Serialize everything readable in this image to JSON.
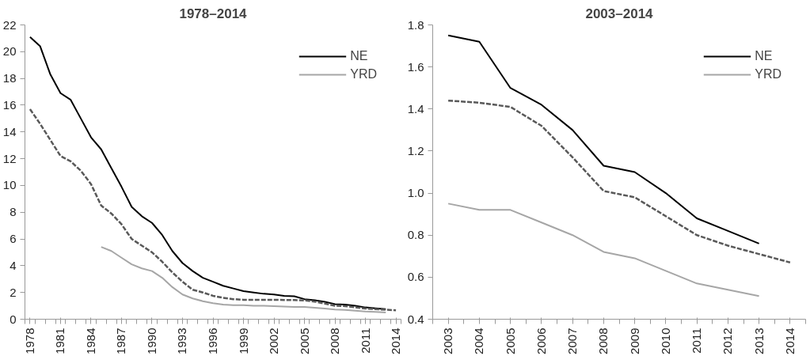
{
  "chart_data": [
    {
      "type": "line",
      "title": "1978–2014",
      "categories": [
        "1978",
        null,
        null,
        "1981",
        null,
        null,
        "1984",
        null,
        null,
        "1987",
        null,
        null,
        "1990",
        null,
        null,
        "1993",
        null,
        null,
        "1996",
        null,
        null,
        "1999",
        null,
        null,
        "2002",
        null,
        null,
        "2005",
        null,
        null,
        "2008",
        null,
        null,
        "2011",
        null,
        null,
        "2014"
      ],
      "series": [
        {
          "name": "NE",
          "color": "#000000",
          "line_style": "solid",
          "values": [
            21.1,
            20.4,
            18.3,
            16.9,
            16.4,
            15.0,
            13.6,
            12.7,
            11.3,
            9.9,
            8.4,
            7.7,
            7.2,
            6.3,
            5.1,
            4.2,
            3.6,
            3.1,
            2.8,
            2.5,
            2.3,
            2.1,
            2.0,
            1.9,
            1.85,
            1.75,
            1.72,
            1.5,
            1.42,
            1.3,
            1.13,
            1.1,
            1.0,
            0.88,
            0.82,
            0.76,
            null
          ]
        },
        {
          "name": "YRD",
          "color": "#a6a6a6",
          "line_style": "solid",
          "values": [
            null,
            null,
            null,
            null,
            null,
            null,
            null,
            5.4,
            5.1,
            4.6,
            4.1,
            3.8,
            3.6,
            3.1,
            2.4,
            1.85,
            1.55,
            1.35,
            1.2,
            1.1,
            1.05,
            1.05,
            1.0,
            1.0,
            0.97,
            0.95,
            0.92,
            0.92,
            0.86,
            0.8,
            0.72,
            0.69,
            0.63,
            0.57,
            0.54,
            0.51,
            null
          ]
        },
        {
          "color": "#595959",
          "line_style": "dashed",
          "values": [
            15.7,
            14.6,
            13.4,
            12.2,
            11.8,
            11.1,
            10.1,
            8.5,
            7.9,
            7.1,
            6.0,
            5.5,
            5.0,
            4.3,
            3.5,
            2.8,
            2.2,
            2.0,
            1.75,
            1.6,
            1.5,
            1.45,
            1.45,
            1.45,
            1.45,
            1.44,
            1.43,
            1.41,
            1.32,
            1.17,
            1.01,
            0.98,
            0.89,
            0.8,
            0.75,
            0.71,
            0.67
          ]
        }
      ],
      "ylim": [
        0,
        22
      ],
      "yticks": [
        0,
        2,
        4,
        6,
        8,
        10,
        12,
        14,
        16,
        18,
        20,
        22
      ],
      "grid": false,
      "legend": "top right"
    },
    {
      "type": "line",
      "title": "2003–2014",
      "categories": [
        "2003",
        "2004",
        "2005",
        "2006",
        "2007",
        "2008",
        "2009",
        "2010",
        "2011",
        "2012",
        "2013",
        "2014"
      ],
      "series": [
        {
          "name": "NE",
          "color": "#000000",
          "line_style": "solid",
          "values": [
            1.75,
            1.72,
            1.5,
            1.42,
            1.3,
            1.13,
            1.1,
            1.0,
            0.88,
            0.82,
            0.76,
            null
          ]
        },
        {
          "name": "YRD",
          "color": "#a6a6a6",
          "line_style": "solid",
          "values": [
            0.95,
            0.92,
            0.92,
            0.86,
            0.8,
            0.72,
            0.69,
            0.63,
            0.57,
            0.54,
            0.51,
            null
          ]
        },
        {
          "color": "#595959",
          "line_style": "dashed",
          "values": [
            1.44,
            1.43,
            1.41,
            1.32,
            1.17,
            1.01,
            0.98,
            0.89,
            0.8,
            0.75,
            0.71,
            0.67
          ]
        }
      ],
      "ylim": [
        0.4,
        1.8
      ],
      "yticks": [
        0.4,
        0.6,
        0.8,
        {
          "value": 1.0,
          "label": "1.0"
        },
        1.2,
        1.4,
        1.6,
        1.8
      ],
      "grid": false,
      "legend": "top right"
    }
  ]
}
